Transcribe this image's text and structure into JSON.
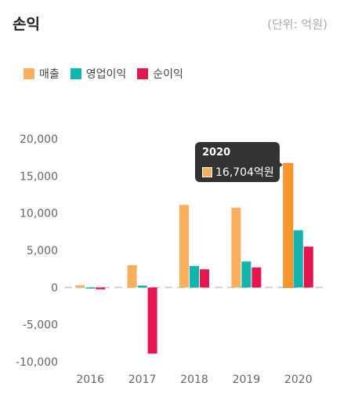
{
  "header": {
    "title": "손익",
    "unit": "(단위: 억원)"
  },
  "legend": [
    {
      "label": "매출",
      "color": "#FBAF5D"
    },
    {
      "label": "영업이익",
      "color": "#12B5AE"
    },
    {
      "label": "순이익",
      "color": "#E5154D"
    }
  ],
  "tooltip": {
    "title": "2020",
    "value": "16,704억원",
    "color": "#FBAF5D"
  },
  "chart_data": {
    "type": "bar",
    "categories": [
      "2016",
      "2017",
      "2018",
      "2019",
      "2020"
    ],
    "series": [
      {
        "name": "매출",
        "color": "#FBAF5D",
        "values": [
          300,
          3000,
          11100,
          10750,
          16704
        ]
      },
      {
        "name": "영업이익",
        "color": "#12B5AE",
        "values": [
          -150,
          250,
          2900,
          3500,
          7700
        ]
      },
      {
        "name": "순이익",
        "color": "#E5154D",
        "values": [
          -250,
          -8900,
          2450,
          2700,
          5500
        ]
      }
    ],
    "yticks": [
      "20,000",
      "15,000",
      "10,000",
      "5,000",
      "0",
      "-5,000",
      "-10,000"
    ],
    "ytick_values": [
      20000,
      15000,
      10000,
      5000,
      0,
      -5000,
      -10000
    ],
    "ylim": [
      -10000,
      20000
    ],
    "highlighted_category": "2020",
    "highlighted_series": "매출",
    "grid": false,
    "legend_position": "top-left"
  }
}
